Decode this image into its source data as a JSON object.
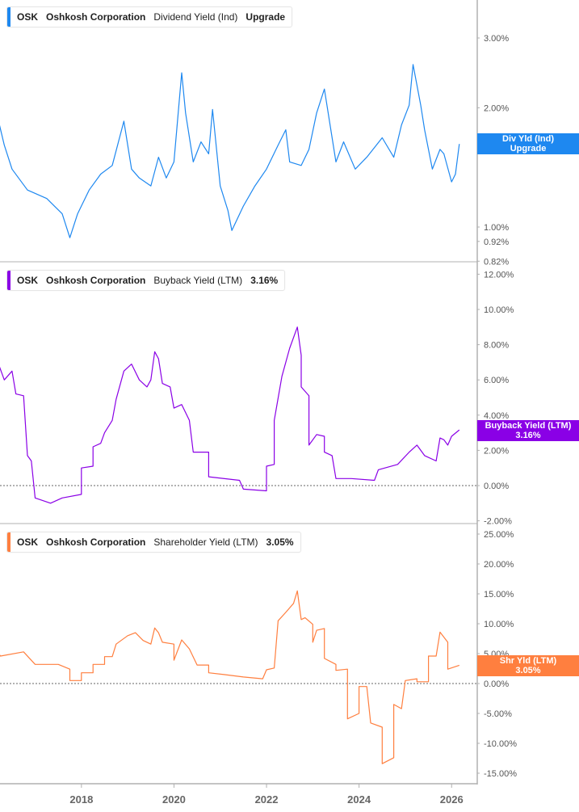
{
  "colors": {
    "dividend": "#1e88f0",
    "buyback": "#8a00e6",
    "shareholder": "#ff7f3f",
    "axis": "#b0b0b0",
    "text": "#555555"
  },
  "chart_data": [
    {
      "type": "line",
      "legend": {
        "ticker": "OSK",
        "company": "Oshkosh Corporation",
        "metric": "Dividend Yield (Ind)",
        "value": "Upgrade"
      },
      "tag": {
        "line1": "Div Yld (Ind)",
        "line2": "Upgrade"
      },
      "y_scale": "log",
      "ylim": [
        0.82,
        3.6
      ],
      "y_ticks": [
        {
          "v": 3.0,
          "label": "3.00%"
        },
        {
          "v": 2.0,
          "label": "2.00%"
        },
        {
          "v": 1.0,
          "label": "1.00%"
        },
        {
          "v": 0.92,
          "label": "0.92%"
        },
        {
          "v": 0.82,
          "label": "0.82%"
        }
      ],
      "series": [
        {
          "values": [
            [
              "2016-03",
              1.94
            ],
            [
              "2016-05",
              1.61
            ],
            [
              "2016-07",
              1.4
            ],
            [
              "2016-11",
              1.24
            ],
            [
              "2017-04",
              1.18
            ],
            [
              "2017-08",
              1.08
            ],
            [
              "2017-10",
              0.94
            ],
            [
              "2017-12",
              1.08
            ],
            [
              "2018-03",
              1.24
            ],
            [
              "2018-06",
              1.36
            ],
            [
              "2018-09",
              1.43
            ],
            [
              "2018-12",
              1.85
            ],
            [
              "2019-02",
              1.4
            ],
            [
              "2019-04",
              1.33
            ],
            [
              "2019-07",
              1.27
            ],
            [
              "2019-09",
              1.5
            ],
            [
              "2019-11",
              1.33
            ],
            [
              "2020-01",
              1.46
            ],
            [
              "2020-03",
              2.45
            ],
            [
              "2020-04",
              1.94
            ],
            [
              "2020-06",
              1.46
            ],
            [
              "2020-08",
              1.64
            ],
            [
              "2020-10",
              1.53
            ],
            [
              "2020-11",
              1.98
            ],
            [
              "2021-01",
              1.27
            ],
            [
              "2021-03",
              1.1
            ],
            [
              "2021-04",
              0.98
            ],
            [
              "2021-07",
              1.13
            ],
            [
              "2021-10",
              1.27
            ],
            [
              "2022-01",
              1.4
            ],
            [
              "2022-04",
              1.61
            ],
            [
              "2022-06",
              1.76
            ],
            [
              "2022-07",
              1.46
            ],
            [
              "2022-10",
              1.43
            ],
            [
              "2022-12",
              1.57
            ],
            [
              "2023-02",
              1.94
            ],
            [
              "2023-04",
              2.23
            ],
            [
              "2023-07",
              1.46
            ],
            [
              "2023-09",
              1.64
            ],
            [
              "2023-12",
              1.4
            ],
            [
              "2024-03",
              1.5
            ],
            [
              "2024-07",
              1.68
            ],
            [
              "2024-10",
              1.5
            ],
            [
              "2024-12",
              1.81
            ],
            [
              "2025-02",
              2.03
            ],
            [
              "2025-03",
              2.57
            ],
            [
              "2025-05",
              2.03
            ],
            [
              "2025-06",
              1.76
            ],
            [
              "2025-08",
              1.4
            ],
            [
              "2025-10",
              1.57
            ],
            [
              "2025-11",
              1.53
            ],
            [
              "2026-01",
              1.3
            ],
            [
              "2026-02",
              1.36
            ],
            [
              "2026-03",
              1.62
            ]
          ]
        }
      ]
    },
    {
      "type": "line",
      "legend": {
        "ticker": "OSK",
        "company": "Oshkosh Corporation",
        "metric": "Buyback Yield (LTM)",
        "value": "3.16%"
      },
      "tag": {
        "line1": "Buyback Yield (LTM)",
        "line2": "3.16%"
      },
      "ylim": [
        -2.2,
        12.4
      ],
      "zero_line": true,
      "y_ticks": [
        {
          "v": 12,
          "label": "12.00%"
        },
        {
          "v": 10,
          "label": "10.00%"
        },
        {
          "v": 8,
          "label": "8.00%"
        },
        {
          "v": 6,
          "label": "6.00%"
        },
        {
          "v": 4,
          "label": "4.00%"
        },
        {
          "v": 2,
          "label": "2.00%"
        },
        {
          "v": 0,
          "label": "0.00%"
        },
        {
          "v": -2,
          "label": "-2.00%"
        }
      ],
      "series": [
        {
          "values": [
            [
              "2016-03",
              7.2
            ],
            [
              "2016-05",
              6.0
            ],
            [
              "2016-07",
              6.5
            ],
            [
              "2016-08",
              5.2
            ],
            [
              "2016-10",
              5.1
            ],
            [
              "2016-11",
              1.7
            ],
            [
              "2016-12",
              1.4
            ],
            [
              "2017-01",
              -0.7
            ],
            [
              "2017-05",
              -1.0
            ],
            [
              "2017-08",
              -0.7
            ],
            [
              "2018-01",
              -0.5
            ],
            [
              "2018-01",
              1.0
            ],
            [
              "2018-04",
              1.1
            ],
            [
              "2018-04",
              2.2
            ],
            [
              "2018-06",
              2.4
            ],
            [
              "2018-07",
              3.0
            ],
            [
              "2018-09",
              3.7
            ],
            [
              "2018-10",
              4.9
            ],
            [
              "2018-12",
              6.5
            ],
            [
              "2019-02",
              6.9
            ],
            [
              "2019-04",
              6.0
            ],
            [
              "2019-06",
              5.6
            ],
            [
              "2019-07",
              6.0
            ],
            [
              "2019-08",
              7.6
            ],
            [
              "2019-09",
              7.2
            ],
            [
              "2019-10",
              5.8
            ],
            [
              "2019-12",
              5.6
            ],
            [
              "2020-01",
              4.4
            ],
            [
              "2020-03",
              4.6
            ],
            [
              "2020-05",
              3.7
            ],
            [
              "2020-06",
              1.9
            ],
            [
              "2020-10",
              1.9
            ],
            [
              "2020-10",
              0.5
            ],
            [
              "2021-06",
              0.3
            ],
            [
              "2021-07",
              -0.2
            ],
            [
              "2022-01",
              -0.3
            ],
            [
              "2022-01",
              1.1
            ],
            [
              "2022-03",
              1.2
            ],
            [
              "2022-03",
              3.7
            ],
            [
              "2022-05",
              6.2
            ],
            [
              "2022-07",
              7.8
            ],
            [
              "2022-09",
              9.0
            ],
            [
              "2022-10",
              7.4
            ],
            [
              "2022-10",
              5.6
            ],
            [
              "2022-12",
              5.1
            ],
            [
              "2022-12",
              2.3
            ],
            [
              "2023-02",
              2.9
            ],
            [
              "2023-04",
              2.8
            ],
            [
              "2023-04",
              1.9
            ],
            [
              "2023-06",
              1.7
            ],
            [
              "2023-07",
              0.4
            ],
            [
              "2023-11",
              0.4
            ],
            [
              "2024-05",
              0.3
            ],
            [
              "2024-06",
              0.9
            ],
            [
              "2024-11",
              1.2
            ],
            [
              "2025-02",
              1.9
            ],
            [
              "2025-04",
              2.3
            ],
            [
              "2025-06",
              1.7
            ],
            [
              "2025-09",
              1.4
            ],
            [
              "2025-10",
              2.7
            ],
            [
              "2025-11",
              2.6
            ],
            [
              "2025-12",
              2.3
            ],
            [
              "2026-01",
              2.8
            ],
            [
              "2026-03",
              3.16
            ]
          ]
        }
      ]
    },
    {
      "type": "line",
      "legend": {
        "ticker": "OSK",
        "company": "Oshkosh Corporation",
        "metric": "Shareholder Yield (LTM)",
        "value": "3.05%"
      },
      "tag": {
        "line1": "Shr Yld (LTM)",
        "line2": "3.05%"
      },
      "ylim": [
        -16.8,
        26.5
      ],
      "zero_line": true,
      "y_ticks": [
        {
          "v": 25,
          "label": "25.00%"
        },
        {
          "v": 20,
          "label": "20.00%"
        },
        {
          "v": 15,
          "label": "15.00%"
        },
        {
          "v": 10,
          "label": "10.00%"
        },
        {
          "v": 5,
          "label": "5.00%"
        },
        {
          "v": 0,
          "label": "0.00%"
        },
        {
          "v": -5,
          "label": "-5.00%"
        },
        {
          "v": -10,
          "label": "-10.00%"
        },
        {
          "v": -15,
          "label": "-15.00%"
        }
      ],
      "series": [
        {
          "values": [
            [
              "2016-03",
              5.5
            ],
            [
              "2016-04",
              4.6
            ],
            [
              "2016-10",
              5.3
            ],
            [
              "2017-01",
              3.2
            ],
            [
              "2017-07",
              3.2
            ],
            [
              "2017-10",
              2.4
            ],
            [
              "2017-10",
              0.5
            ],
            [
              "2018-01",
              0.5
            ],
            [
              "2018-01",
              1.8
            ],
            [
              "2018-04",
              1.8
            ],
            [
              "2018-04",
              3.2
            ],
            [
              "2018-07",
              3.2
            ],
            [
              "2018-07",
              4.5
            ],
            [
              "2018-09",
              4.5
            ],
            [
              "2018-10",
              6.6
            ],
            [
              "2019-01",
              8.0
            ],
            [
              "2019-03",
              8.5
            ],
            [
              "2019-05",
              7.2
            ],
            [
              "2019-07",
              6.6
            ],
            [
              "2019-08",
              9.3
            ],
            [
              "2019-09",
              8.5
            ],
            [
              "2019-10",
              6.9
            ],
            [
              "2020-01",
              6.6
            ],
            [
              "2020-01",
              3.9
            ],
            [
              "2020-03",
              7.3
            ],
            [
              "2020-05",
              5.8
            ],
            [
              "2020-07",
              3.1
            ],
            [
              "2020-10",
              3.1
            ],
            [
              "2020-10",
              1.8
            ],
            [
              "2021-02",
              1.5
            ],
            [
              "2021-07",
              1.1
            ],
            [
              "2021-12",
              0.8
            ],
            [
              "2022-01",
              2.3
            ],
            [
              "2022-03",
              2.6
            ],
            [
              "2022-04",
              10.5
            ],
            [
              "2022-06",
              11.9
            ],
            [
              "2022-08",
              13.4
            ],
            [
              "2022-09",
              15.5
            ],
            [
              "2022-10",
              10.7
            ],
            [
              "2022-11",
              11.0
            ],
            [
              "2023-01",
              9.9
            ],
            [
              "2023-01",
              6.9
            ],
            [
              "2023-02",
              8.9
            ],
            [
              "2023-04",
              9.2
            ],
            [
              "2023-04",
              4.2
            ],
            [
              "2023-07",
              3.2
            ],
            [
              "2023-07",
              2.2
            ],
            [
              "2023-10",
              2.4
            ],
            [
              "2023-10",
              -5.9
            ],
            [
              "2024-01",
              -5.0
            ],
            [
              "2024-01",
              -0.5
            ],
            [
              "2024-03",
              -0.5
            ],
            [
              "2024-04",
              -6.6
            ],
            [
              "2024-07",
              -7.3
            ],
            [
              "2024-07",
              -13.4
            ],
            [
              "2024-10",
              -12.4
            ],
            [
              "2024-10",
              -3.5
            ],
            [
              "2024-12",
              -4.2
            ],
            [
              "2025-01",
              0.5
            ],
            [
              "2025-04",
              0.8
            ],
            [
              "2025-04",
              0.3
            ],
            [
              "2025-07",
              0.3
            ],
            [
              "2025-07",
              4.6
            ],
            [
              "2025-09",
              4.6
            ],
            [
              "2025-10",
              8.6
            ],
            [
              "2025-12",
              6.9
            ],
            [
              "2025-12",
              2.4
            ],
            [
              "2026-03",
              3.05
            ]
          ]
        }
      ]
    }
  ],
  "x_axis": {
    "ticks": [
      "2018",
      "2020",
      "2022",
      "2024",
      "2026"
    ]
  }
}
